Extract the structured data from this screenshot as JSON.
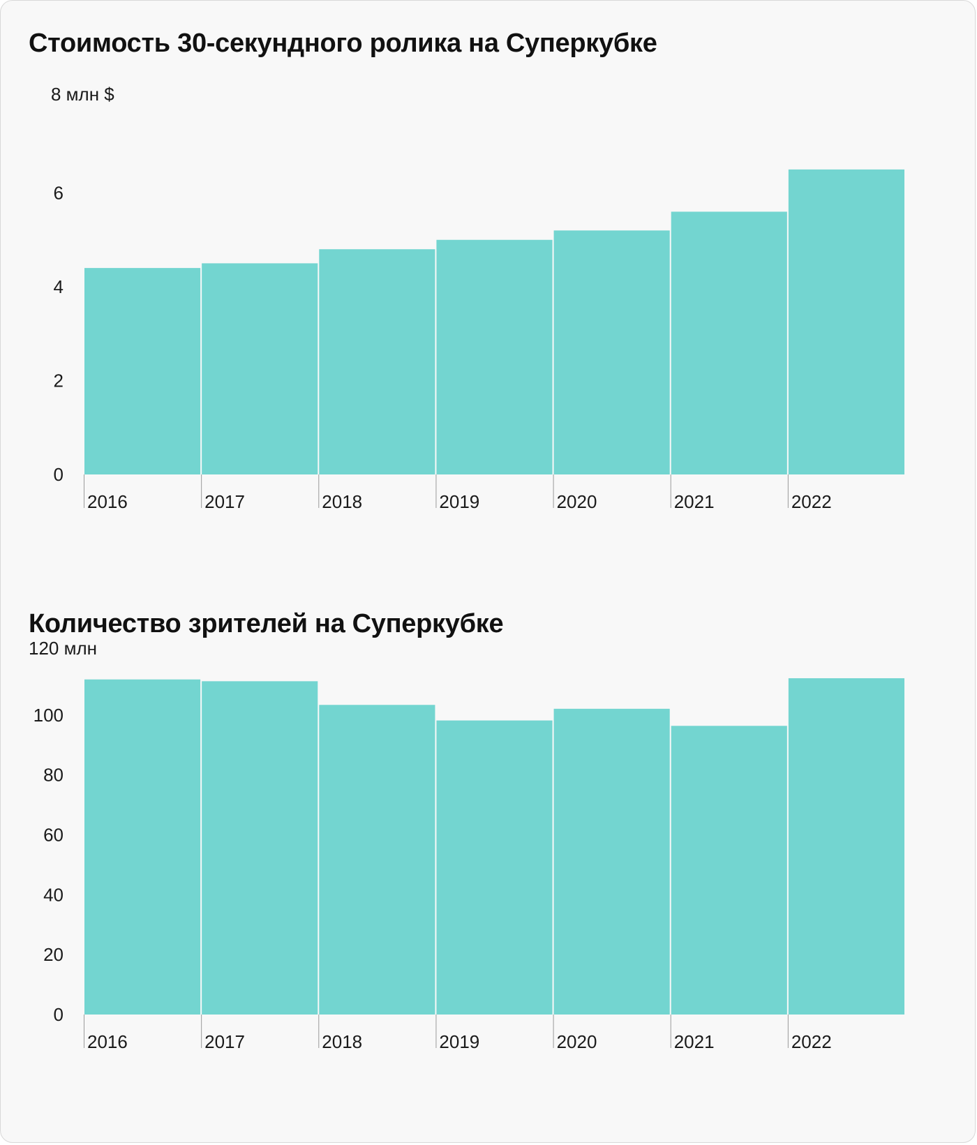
{
  "chart_data": [
    {
      "type": "bar",
      "title": "Стоимость 30-секундного ролика на Суперкубке",
      "unit_label": "8 млн $",
      "categories": [
        "2016",
        "2017",
        "2018",
        "2019",
        "2020",
        "2021",
        "2022"
      ],
      "values": [
        4.4,
        4.5,
        4.8,
        5.0,
        5.2,
        5.6,
        6.5
      ],
      "ylim": [
        0,
        8
      ],
      "y_ticks": [
        "0",
        "2",
        "4",
        "6"
      ],
      "bar_color": "#73d5d0",
      "grid": false
    },
    {
      "type": "bar",
      "title": "Количество зрителей на Суперкубке",
      "unit_label": "120 млн",
      "categories": [
        "2016",
        "2017",
        "2018",
        "2019",
        "2020",
        "2021",
        "2022"
      ],
      "values": [
        111.9,
        111.3,
        103.4,
        98.2,
        102.1,
        96.4,
        112.3
      ],
      "ylim": [
        0,
        120
      ],
      "y_ticks": [
        "0",
        "20",
        "40",
        "60",
        "80",
        "100"
      ],
      "bar_color": "#73d5d0",
      "grid": false
    }
  ]
}
